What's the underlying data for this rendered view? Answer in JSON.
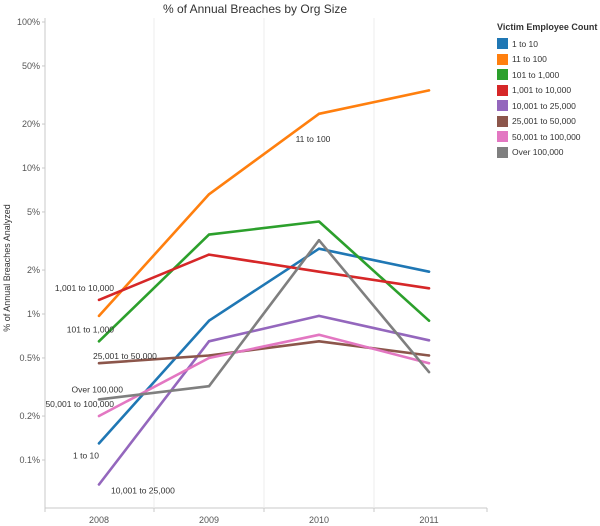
{
  "chart_data": {
    "type": "line",
    "title": "% of Annual Breaches by Org Size",
    "ylabel": "% of Annual Breaches Analyzed",
    "xlabel": "",
    "x": [
      "2008",
      "2009",
      "2010",
      "2011"
    ],
    "y_scale": "log",
    "ylim": [
      0.05,
      100
    ],
    "y_ticks": [
      {
        "value": 100,
        "label": "100%"
      },
      {
        "value": 50,
        "label": "50%"
      },
      {
        "value": 20,
        "label": "20%"
      },
      {
        "value": 10,
        "label": "10%"
      },
      {
        "value": 5,
        "label": "5%"
      },
      {
        "value": 2,
        "label": "2%"
      },
      {
        "value": 1,
        "label": "1%"
      },
      {
        "value": 0.5,
        "label": "0.5%"
      },
      {
        "value": 0.2,
        "label": "0.2%"
      },
      {
        "value": 0.1,
        "label": "0.1%"
      }
    ],
    "grid": "vertical",
    "legend": {
      "title": "Victim Employee Count",
      "placement": "right"
    },
    "series": [
      {
        "name": "1 to 10",
        "color": "#1f77b4",
        "values": [
          0.13,
          0.9,
          2.8,
          1.95
        ],
        "label": "1 to 10",
        "label_at": "start"
      },
      {
        "name": "11 to 100",
        "color": "#ff7f0e",
        "values": [
          0.97,
          6.6,
          23.5,
          34.0
        ],
        "label": "11 to 100",
        "label_at": "end"
      },
      {
        "name": "101 to 1,000",
        "color": "#2ca02c",
        "values": [
          0.65,
          3.5,
          4.3,
          0.9
        ],
        "label": "101 to 1,000",
        "label_at": "start"
      },
      {
        "name": "1,001 to 10,000",
        "color": "#d62728",
        "values": [
          1.25,
          2.55,
          1.95,
          1.5
        ],
        "label": "1,001 to 10,000",
        "label_at": "start"
      },
      {
        "name": "10,001 to 25,000",
        "color": "#9467bd",
        "values": [
          0.068,
          0.65,
          0.97,
          0.66
        ],
        "label": "10,001 to 25,000",
        "label_at": "start"
      },
      {
        "name": "25,001 to 50,000",
        "color": "#8c564b",
        "values": [
          0.46,
          0.52,
          0.65,
          0.52
        ],
        "label": "25,001 to 50,000",
        "label_at": "start"
      },
      {
        "name": "50,001 to 100,000",
        "color": "#e377c2",
        "values": [
          0.2,
          0.5,
          0.72,
          0.46
        ],
        "label": "50,001 to 100,000",
        "label_at": "start"
      },
      {
        "name": "Over 100,000",
        "color": "#7f7f7f",
        "values": [
          0.26,
          0.32,
          3.2,
          0.4
        ],
        "label": "Over 100,000",
        "label_at": "start"
      }
    ]
  }
}
